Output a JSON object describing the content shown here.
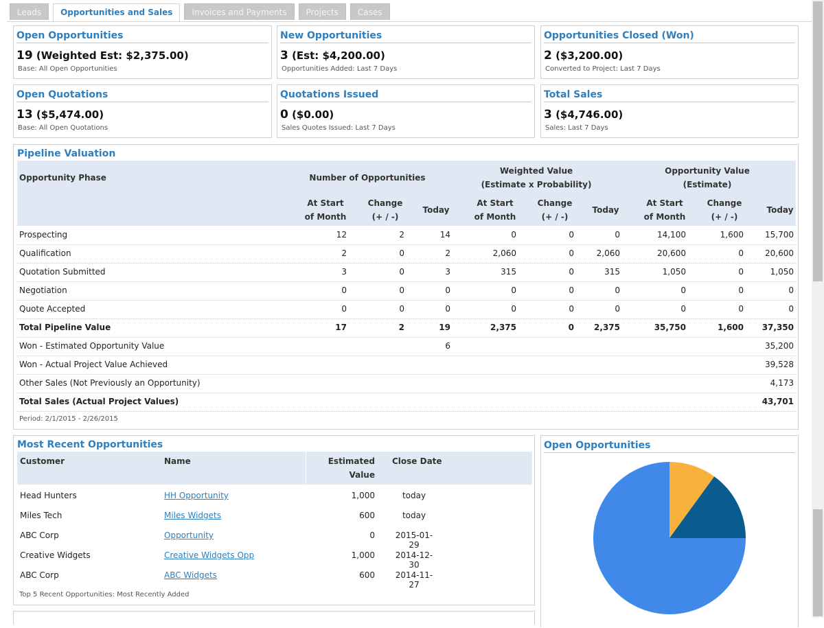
{
  "tabs": [
    {
      "label": "Leads"
    },
    {
      "label": "Opportunities and Sales"
    },
    {
      "label": "Invoices and Payments"
    },
    {
      "label": "Projects"
    },
    {
      "label": "Cases"
    }
  ],
  "cards": [
    {
      "title": "Open Opportunities",
      "count": "19",
      "detail": "(Weighted Est: $2,375.00)",
      "sub": "Base: All Open Opportunities"
    },
    {
      "title": "New Opportunities",
      "count": "3",
      "detail": "(Est: $4,200.00)",
      "sub": "Opportunities Added: Last 7 Days"
    },
    {
      "title": "Opportunities Closed (Won)",
      "count": "2",
      "detail": "($3,200.00)",
      "sub": "Converted to Project: Last 7 Days"
    },
    {
      "title": "Open Quotations",
      "count": "13",
      "detail": "($5,474.00)",
      "sub": "Base: All Open Quotations"
    },
    {
      "title": "Quotations Issued",
      "count": "0",
      "detail": "($0.00)",
      "sub": "Sales Quotes Issued: Last 7 Days"
    },
    {
      "title": "Total Sales",
      "count": "3",
      "detail": "($4,746.00)",
      "sub": "Sales: Last 7 Days"
    }
  ],
  "pipeline": {
    "title": "Pipeline Valuation",
    "headers": {
      "phase": "Opportunity Phase",
      "num_opps": "Number of Opportunities",
      "weighted_1": "Weighted Value",
      "weighted_2": "(Estimate x Probability)",
      "oppval_1": "Opportunity Value",
      "oppval_2": "(Estimate)",
      "start_1": "At Start",
      "start_2": "of Month",
      "change_1": "Change",
      "change_2": "(+ / -)",
      "today": "Today"
    },
    "rows": [
      {
        "label": "Prospecting",
        "vals": [
          "12",
          "2",
          "14",
          "0",
          "0",
          "0",
          "14,100",
          "1,600",
          "15,700"
        ]
      },
      {
        "label": "Qualification",
        "vals": [
          "2",
          "0",
          "2",
          "2,060",
          "0",
          "2,060",
          "20,600",
          "0",
          "20,600"
        ]
      },
      {
        "label": "Quotation Submitted",
        "vals": [
          "3",
          "0",
          "3",
          "315",
          "0",
          "315",
          "1,050",
          "0",
          "1,050"
        ]
      },
      {
        "label": "Negotiation",
        "vals": [
          "0",
          "0",
          "0",
          "0",
          "0",
          "0",
          "0",
          "0",
          "0"
        ]
      },
      {
        "label": "Quote Accepted",
        "vals": [
          "0",
          "0",
          "0",
          "0",
          "0",
          "0",
          "0",
          "0",
          "0"
        ]
      },
      {
        "label": "Total Pipeline Value",
        "bold": true,
        "vals": [
          "17",
          "2",
          "19",
          "2,375",
          "0",
          "2,375",
          "35,750",
          "1,600",
          "37,350"
        ]
      },
      {
        "label": "Won - Estimated Opportunity Value",
        "vals": [
          "",
          "",
          "6",
          "",
          "",
          "",
          "",
          "",
          "35,200"
        ]
      },
      {
        "label": "Won - Actual Project Value Achieved",
        "vals": [
          "",
          "",
          "",
          "",
          "",
          "",
          "",
          "",
          "39,528"
        ]
      },
      {
        "label": "Other Sales (Not Previously an Opportunity)",
        "vals": [
          "",
          "",
          "",
          "",
          "",
          "",
          "",
          "",
          "4,173"
        ]
      },
      {
        "label": "Total Sales (Actual Project Values)",
        "bold": true,
        "vals": [
          "",
          "",
          "",
          "",
          "",
          "",
          "",
          "",
          "43,701"
        ]
      }
    ],
    "period": "Period: 2/1/2015 - 2/26/2015"
  },
  "recent": {
    "title": "Most Recent Opportunities",
    "headers": {
      "customer": "Customer",
      "name": "Name",
      "est_1": "Estimated",
      "est_2": "Value",
      "close": "Close Date"
    },
    "rows": [
      {
        "customer": "Head Hunters",
        "name": "HH Opportunity",
        "value": "1,000",
        "date": "today"
      },
      {
        "customer": "Miles Tech",
        "name": "Miles Widgets",
        "value": "600",
        "date": "today"
      },
      {
        "customer": "ABC Corp",
        "name": "Opportunity",
        "value": "0",
        "date": "2015-01-29"
      },
      {
        "customer": "Creative Widgets",
        "name": "Creative Widgets Opp",
        "value": "1,000",
        "date": "2014-12-30"
      },
      {
        "customer": "ABC Corp",
        "name": "ABC Widgets",
        "value": "600",
        "date": "2014-11-27"
      }
    ],
    "footer": "Top 5 Recent Opportunities: Most Recently Added"
  },
  "pie_title": "Open Opportunities",
  "chart_data": {
    "type": "pie",
    "title": "Open Opportunities",
    "slices": [
      {
        "value": 0.75,
        "color": "#4189e8"
      },
      {
        "value": 0.1,
        "color": "#f9b13d"
      },
      {
        "value": 0.15,
        "color": "#0a5c8f"
      }
    ]
  }
}
